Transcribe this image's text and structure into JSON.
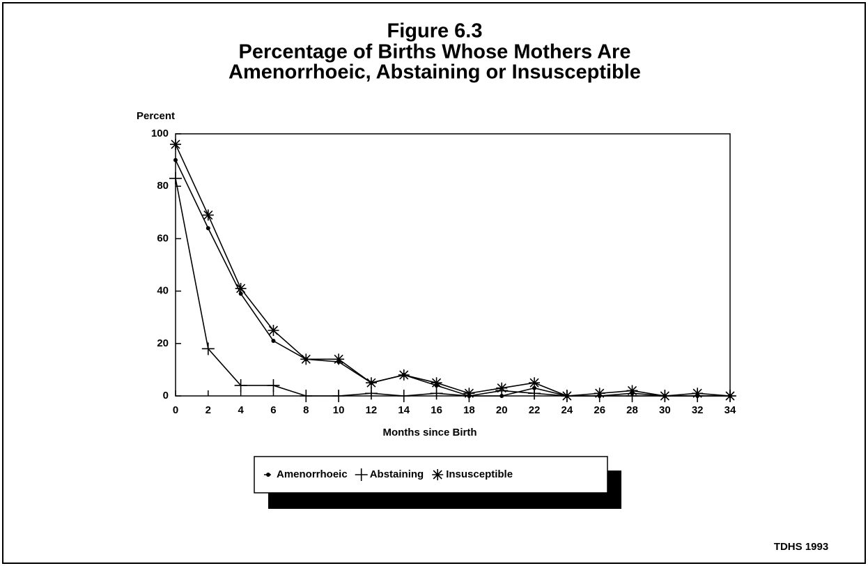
{
  "chart_data": {
    "type": "line",
    "title": [
      "Figure 6.3",
      "Percentage of Births Whose Mothers Are",
      "Amenorrhoeic, Abstaining or Insusceptible"
    ],
    "ylabel": "Percent",
    "xlabel": "Months since Birth",
    "source": "TDHS 1993",
    "x": [
      0,
      2,
      4,
      6,
      8,
      10,
      12,
      14,
      16,
      18,
      20,
      22,
      24,
      26,
      28,
      30,
      32,
      34
    ],
    "series": [
      {
        "name": "Amenorrhoeic",
        "color": "#000000",
        "marker": "dot",
        "values": [
          90,
          64,
          39,
          21,
          14,
          13,
          5,
          8,
          4,
          0,
          0,
          3,
          0,
          0,
          1,
          0,
          0,
          0
        ]
      },
      {
        "name": "Abstaining",
        "color": "#000000",
        "marker": "plus",
        "values": [
          83,
          18,
          4,
          4,
          0,
          0,
          1,
          0,
          1,
          0,
          2,
          1,
          0,
          0,
          0,
          0,
          0,
          0
        ]
      },
      {
        "name": "Insusceptible",
        "color": "#000000",
        "marker": "asterisk",
        "values": [
          96,
          69,
          41,
          25,
          14,
          14,
          5,
          8,
          5,
          1,
          3,
          5,
          0,
          1,
          2,
          0,
          1,
          0
        ]
      }
    ],
    "xlim": [
      0,
      34
    ],
    "xticks": [
      0,
      2,
      4,
      6,
      8,
      10,
      12,
      14,
      16,
      18,
      20,
      22,
      24,
      26,
      28,
      30,
      32,
      34
    ],
    "ylim": [
      0,
      100
    ],
    "yticks": [
      0,
      20,
      40,
      60,
      80,
      100
    ],
    "grid": false,
    "legend": "bottom"
  }
}
